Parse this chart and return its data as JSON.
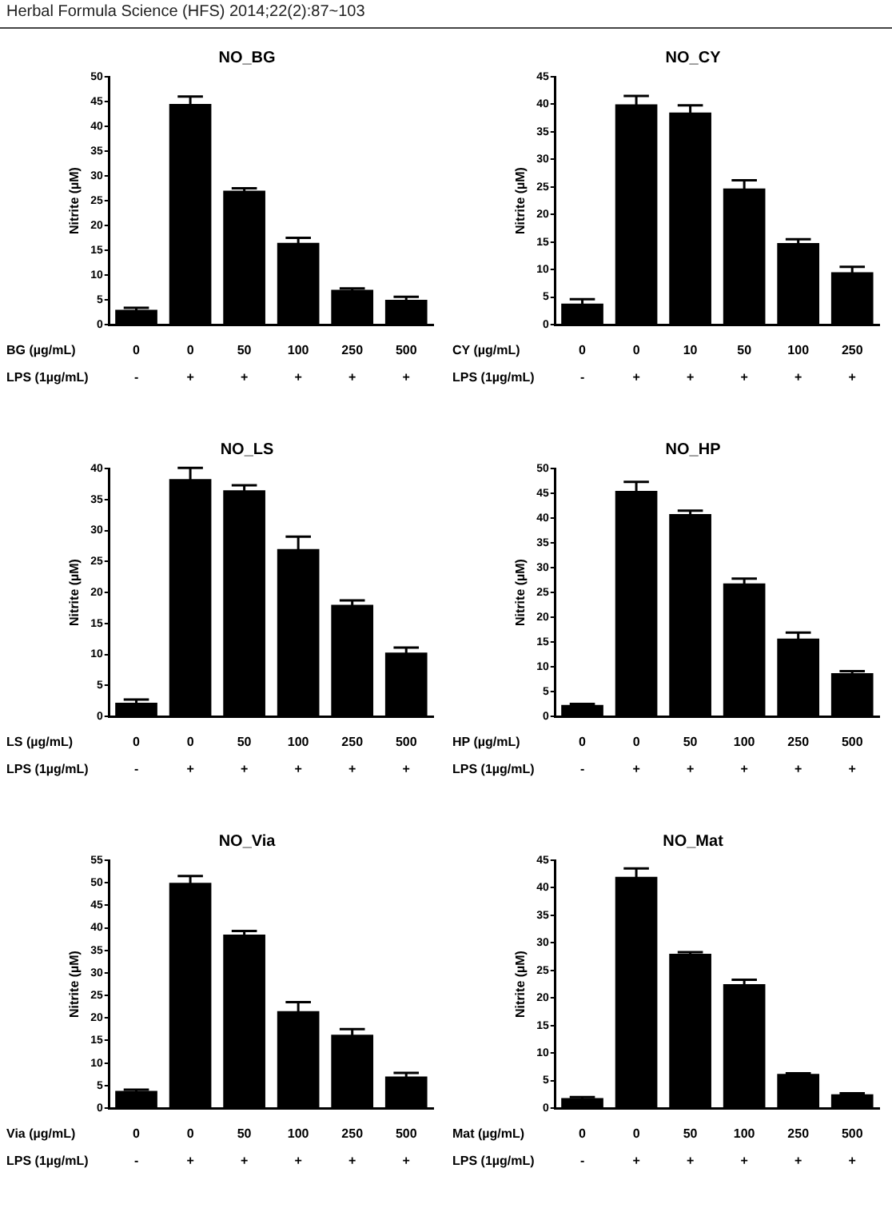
{
  "chart_data": [
    {
      "type": "bar",
      "title": "NO_BG",
      "ylabel": "Nitrite (µM)",
      "xlabel": "BG (µg/mL)\nLPS (1µg/mL)",
      "annotations": [
        "Herbal Formula Science (HFS) 2014;22(2):87~103"
      ],
      "categories": [
        "0\n-",
        "0\n+",
        "50\n+",
        "100\n+",
        "250\n+",
        "500\n+"
      ],
      "values": [
        3,
        44.5,
        27,
        16.5,
        7,
        5
      ],
      "errors": [
        0.4,
        1.5,
        0.5,
        1,
        0.3,
        0.6
      ],
      "color": "#000000",
      "ylim": [
        0,
        50
      ],
      "yticks": [
        0,
        5,
        10,
        15,
        20,
        25,
        30,
        35,
        40,
        45,
        50
      ],
      "grid": false,
      "legend": false
    },
    {
      "type": "bar",
      "title": "NO_CY",
      "ylabel": "Nitrite (µM)",
      "xlabel": "CY (µg/mL)\nLPS (1µg/mL)",
      "categories": [
        "0\n-",
        "0\n+",
        "10\n+",
        "50\n+",
        "100\n+",
        "250\n+"
      ],
      "values": [
        3.8,
        40,
        38.5,
        24.7,
        14.8,
        9.5
      ],
      "errors": [
        0.8,
        1.5,
        1.3,
        1.5,
        0.7,
        1
      ],
      "color": "#000000",
      "ylim": [
        0,
        45
      ],
      "yticks": [
        0,
        5,
        10,
        15,
        20,
        25,
        30,
        35,
        40,
        45
      ],
      "grid": false,
      "legend": false
    },
    {
      "type": "bar",
      "title": "NO_LS",
      "ylabel": "Nitrite (µM)",
      "xlabel": "LS (µg/mL)\nLPS (1µg/mL)",
      "categories": [
        "0\n-",
        "0\n+",
        "50\n+",
        "100\n+",
        "250\n+",
        "500\n+"
      ],
      "values": [
        2.2,
        38.3,
        36.5,
        27,
        18,
        10.3
      ],
      "errors": [
        0.5,
        1.8,
        0.8,
        2,
        0.7,
        0.8
      ],
      "color": "#000000",
      "ylim": [
        0,
        40
      ],
      "yticks": [
        0,
        5,
        10,
        15,
        20,
        25,
        30,
        35,
        40
      ],
      "grid": false,
      "legend": false
    },
    {
      "type": "bar",
      "title": "NO_HP",
      "ylabel": "Nitrite (µM)",
      "xlabel": "HP (µg/mL)\nLPS (1µg/mL)",
      "categories": [
        "0\n-",
        "0\n+",
        "50\n+",
        "100\n+",
        "250\n+",
        "500\n+"
      ],
      "values": [
        2.3,
        45.5,
        40.8,
        26.8,
        15.7,
        8.7
      ],
      "errors": [
        0.2,
        1.8,
        0.7,
        1,
        1.2,
        0.4
      ],
      "color": "#000000",
      "ylim": [
        0,
        50
      ],
      "yticks": [
        0,
        5,
        10,
        15,
        20,
        25,
        30,
        35,
        40,
        45,
        50
      ],
      "grid": false,
      "legend": false
    },
    {
      "type": "bar",
      "title": "NO_Via",
      "ylabel": "Nitrite (µM)",
      "xlabel": "Via (µg/mL)\nLPS (1µg/mL)",
      "categories": [
        "0\n-",
        "0\n+",
        "50\n+",
        "100\n+",
        "250\n+",
        "500\n+"
      ],
      "values": [
        3.8,
        50,
        38.5,
        21.5,
        16.3,
        7
      ],
      "errors": [
        0.3,
        1.5,
        0.8,
        2,
        1.2,
        0.8
      ],
      "color": "#000000",
      "ylim": [
        0,
        55
      ],
      "yticks": [
        0,
        5,
        10,
        15,
        20,
        25,
        30,
        35,
        40,
        45,
        50,
        55
      ],
      "grid": false,
      "legend": false
    },
    {
      "type": "bar",
      "title": "NO_Mat",
      "ylabel": "Nitrite (µM)",
      "xlabel": "Mat (µg/mL)\nLPS (1µg/mL)",
      "categories": [
        "0\n-",
        "0\n+",
        "50\n+",
        "100\n+",
        "250\n+",
        "500\n+"
      ],
      "values": [
        1.8,
        42,
        28,
        22.5,
        6.2,
        2.5
      ],
      "errors": [
        0.2,
        1.5,
        0.3,
        0.8,
        0.1,
        0.2
      ],
      "color": "#000000",
      "ylim": [
        0,
        45
      ],
      "yticks": [
        0,
        5,
        10,
        15,
        20,
        25,
        30,
        35,
        40,
        45
      ],
      "grid": false,
      "legend": false
    }
  ]
}
